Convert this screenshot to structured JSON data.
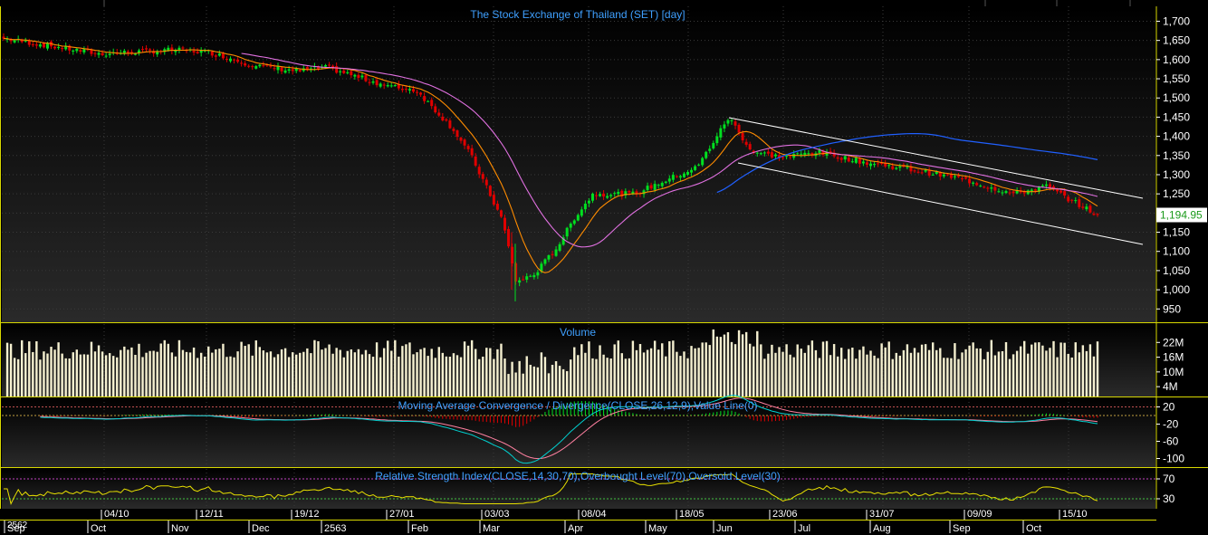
{
  "price_panel": {
    "title": "The Stock Exchange of Thailand (SET) [day]",
    "y_ticks": [
      "1,700",
      "1,650",
      "1,600",
      "1,550",
      "1,500",
      "1,450",
      "1,400",
      "1,350",
      "1,300",
      "1,250",
      "1,200",
      "1,150",
      "1,100",
      "1,050",
      "1,000",
      "950"
    ],
    "last_price_label": "1,194.95"
  },
  "volume_panel": {
    "title": "Volume",
    "y_ticks": [
      "22M",
      "16M",
      "10M",
      "4M"
    ]
  },
  "macd_panel": {
    "title": "Moving Average Convergence / Divergence(CLOSE,26,12,9),Value Line(0)",
    "y_ticks": [
      "20",
      "-20",
      "-60",
      "-100"
    ]
  },
  "rsi_panel": {
    "title": "Relative Strength Index(CLOSE,14,30,70),Overbought Level(70),Oversold Level(30)",
    "y_ticks": [
      "70",
      "30"
    ]
  },
  "x_axis": {
    "top_row": [
      "04/10",
      "12/11",
      "19/12",
      "27/01",
      "03/03",
      "08/04",
      "18/05",
      "23/06",
      "31/07",
      "09/09",
      "15/10"
    ],
    "bottom_row": [
      "Sep",
      "Oct",
      "Nov",
      "Dec",
      "2563",
      "Feb",
      "Mar",
      "Apr",
      "May",
      "Jun",
      "Jul",
      "Aug",
      "Sep",
      "Oct"
    ],
    "corner_label": "2562"
  },
  "colors": {
    "up": "#00e020",
    "down": "#e00000",
    "ma_fast": "#ff8c00",
    "ma_slow": "#e070e0",
    "ma_long": "#2060ff",
    "trend": "#ffffff",
    "volume": "#f5f0d0",
    "macd_line": "#00d0d0",
    "signal_line": "#ff80a0",
    "rsi": "#e8e000",
    "panel_title": "#3fa0ff",
    "axis_text": "#ffffff"
  },
  "chart_data": {
    "type": "candlestick",
    "title": "The Stock Exchange of Thailand (SET) [day]",
    "ylim": [
      920,
      1720
    ],
    "close_anchors": [
      [
        "Sep",
        1655
      ],
      [
        "04/10",
        1615
      ],
      [
        "Nov",
        1625
      ],
      [
        "12/11",
        1620
      ],
      [
        "Dec",
        1585
      ],
      [
        "19/12",
        1570
      ],
      [
        "2563",
        1580
      ],
      [
        "27/01",
        1530
      ],
      [
        "Feb",
        1520
      ],
      [
        "late Feb",
        1420
      ],
      [
        "Mar",
        1350
      ],
      [
        "early Mar",
        1180
      ],
      [
        "03/03",
        1020
      ],
      [
        "mid Mar",
        1040
      ],
      [
        "late Mar",
        1110
      ],
      [
        "Apr",
        1190
      ],
      [
        "08/04",
        1250
      ],
      [
        "mid Apr",
        1250
      ],
      [
        "May",
        1290
      ],
      [
        "18/05",
        1320
      ],
      [
        "late May",
        1450
      ],
      [
        "Jun",
        1360
      ],
      [
        "23/06",
        1345
      ],
      [
        "Jul",
        1360
      ],
      [
        "31/07",
        1330
      ],
      [
        "Aug",
        1320
      ],
      [
        "09/09",
        1290
      ],
      [
        "Sep",
        1250
      ],
      [
        "Oct",
        1270
      ],
      [
        "15/10",
        1195
      ]
    ],
    "last_close": 1194.95,
    "volume_ylim": [
      0,
      28
    ],
    "macd_ylim": [
      -120,
      40
    ],
    "rsi_ylim": [
      10,
      90
    ],
    "rsi_levels": [
      70,
      30
    ]
  }
}
